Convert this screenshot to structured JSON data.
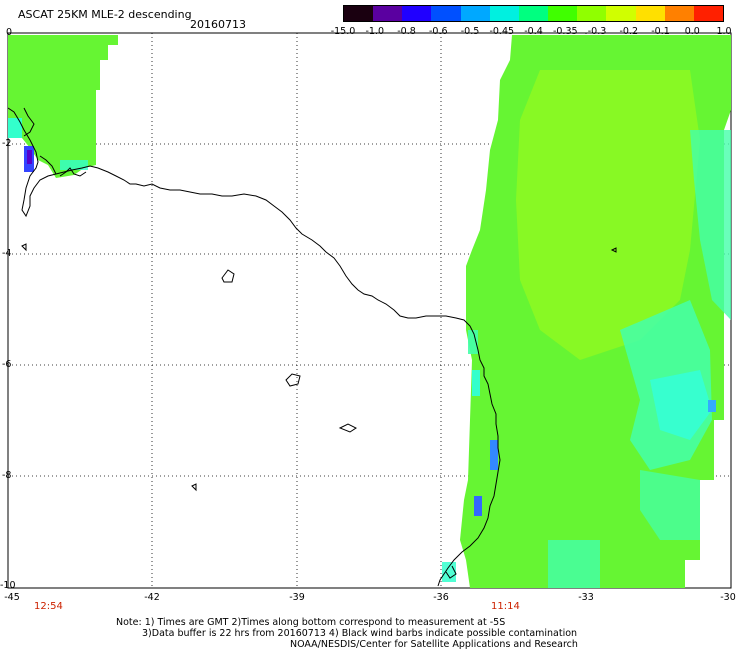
{
  "header": {
    "title": "ASCAT 25KM MLE-2 descending",
    "date": "20160713"
  },
  "colorbar": {
    "labels": [
      "-15.0",
      "-1.0",
      "-0.8",
      "-0.6",
      "-0.5",
      "-0.45",
      "-0.4",
      "-0.35",
      "-0.3",
      "-0.2",
      "-0.1",
      "0.0",
      "1.0"
    ],
    "colors": [
      "#1a0010",
      "#5a00a0",
      "#2000ff",
      "#0050ff",
      "#00a8ff",
      "#00f0e0",
      "#00ff80",
      "#40ff00",
      "#90ff00",
      "#d0ff00",
      "#ffe000",
      "#ff8000",
      "#ff2000"
    ]
  },
  "axes": {
    "y_labels": [
      "0",
      "-2",
      "-4",
      "-6",
      "-8",
      "-10"
    ],
    "x_labels": [
      "-45",
      "-42",
      "-39",
      "-36",
      "-33",
      "-30"
    ]
  },
  "times": {
    "left": "12:54",
    "right": "11:14"
  },
  "notes": {
    "line1": "Note: 1) Times are GMT 2)Times along bottom correspond to measurement at -5S",
    "line2": "3)Data buffer is 22 hrs from 20160713 4) Black wind barbs indicate possible contamination",
    "line3": "NOAA/NESDIS/Center for Satellite Applications and Research"
  },
  "colors": {
    "swath_green": "#66f533",
    "swath_yellowgreen": "#99ff1a",
    "swath_cyan": "#33ffcc",
    "swath_blue": "#3366ff",
    "swath_purple": "#5500cc",
    "coast": "#000000",
    "time_text": "#cc2200"
  }
}
